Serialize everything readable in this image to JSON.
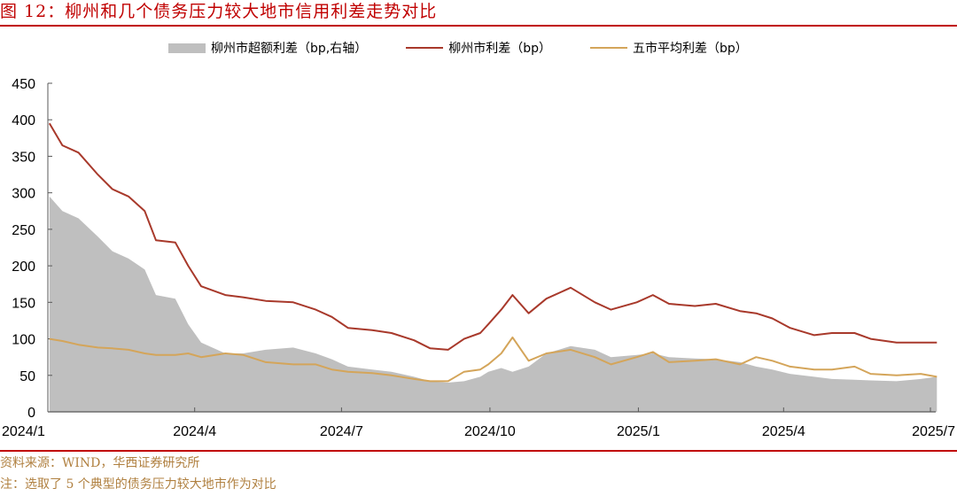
{
  "title": "图 12：柳州和几个债务压力较大地市信用利差走势对比",
  "legend": [
    {
      "label": "柳州市超额利差（bp,右轴）",
      "type": "area",
      "color": "#bfbfbf"
    },
    {
      "label": "柳州市利差（bp）",
      "type": "line",
      "color": "#a8392b"
    },
    {
      "label": "五市平均利差（bp）",
      "type": "line",
      "color": "#d4a55a"
    }
  ],
  "source": "资料来源：WIND，华西证券研究所",
  "note": "注：选取了 5 个典型的债务压力较大地市作为对比",
  "chart_data": {
    "type": "line",
    "title": "柳州和几个债务压力较大地市信用利差走势对比",
    "xlabel": "",
    "ylabel": "bp",
    "ylim": [
      0,
      450
    ],
    "yticks": [
      0,
      50,
      100,
      150,
      200,
      250,
      300,
      350,
      400,
      450
    ],
    "xticks": [
      "2024/1",
      "2024/4",
      "2024/7",
      "2024/10",
      "2025/1",
      "2025/4",
      "2025/7"
    ],
    "grid": false,
    "legend_position": "top",
    "x": [
      "2024-01-02",
      "2024-01-10",
      "2024-01-20",
      "2024-02-01",
      "2024-02-10",
      "2024-02-20",
      "2024-03-01",
      "2024-03-08",
      "2024-03-20",
      "2024-03-28",
      "2024-04-05",
      "2024-04-20",
      "2024-05-01",
      "2024-05-15",
      "2024-06-01",
      "2024-06-15",
      "2024-06-25",
      "2024-07-05",
      "2024-07-20",
      "2024-08-01",
      "2024-08-15",
      "2024-08-25",
      "2024-09-05",
      "2024-09-15",
      "2024-09-25",
      "2024-09-30",
      "2024-10-08",
      "2024-10-15",
      "2024-10-25",
      "2024-11-05",
      "2024-11-20",
      "2024-12-05",
      "2024-12-15",
      "2024-12-31",
      "2025-01-10",
      "2025-01-20",
      "2025-02-05",
      "2025-02-18",
      "2025-03-05",
      "2025-03-15",
      "2025-03-25",
      "2025-04-05",
      "2025-04-20",
      "2025-05-01",
      "2025-05-15",
      "2025-05-25",
      "2025-06-10",
      "2025-06-25",
      "2025-07-05"
    ],
    "series": [
      {
        "name": "柳州市超额利差（bp,右轴）",
        "type": "area",
        "color": "#bfbfbf",
        "values": [
          295,
          275,
          265,
          240,
          220,
          210,
          195,
          160,
          155,
          120,
          95,
          80,
          80,
          85,
          88,
          80,
          72,
          62,
          58,
          55,
          48,
          42,
          40,
          42,
          48,
          55,
          60,
          55,
          62,
          80,
          90,
          85,
          75,
          78,
          80,
          75,
          73,
          72,
          68,
          62,
          58,
          52,
          48,
          45,
          44,
          43,
          42,
          45,
          48
        ]
      },
      {
        "name": "柳州市利差（bp）",
        "type": "line",
        "color": "#a8392b",
        "values": [
          395,
          365,
          355,
          325,
          305,
          295,
          275,
          235,
          232,
          200,
          172,
          160,
          157,
          152,
          150,
          140,
          130,
          115,
          112,
          108,
          98,
          87,
          85,
          100,
          108,
          120,
          140,
          160,
          135,
          155,
          170,
          150,
          140,
          150,
          160,
          148,
          145,
          148,
          138,
          135,
          128,
          115,
          105,
          108,
          108,
          100,
          95,
          95,
          95
        ]
      },
      {
        "name": "五市平均利差（bp）",
        "type": "line",
        "color": "#d4a55a",
        "values": [
          100,
          97,
          92,
          88,
          87,
          85,
          80,
          78,
          78,
          80,
          75,
          80,
          78,
          68,
          65,
          65,
          58,
          55,
          53,
          50,
          45,
          42,
          42,
          55,
          58,
          65,
          80,
          102,
          70,
          80,
          85,
          75,
          65,
          75,
          82,
          68,
          70,
          72,
          65,
          75,
          70,
          62,
          58,
          58,
          62,
          52,
          50,
          52,
          48
        ]
      }
    ]
  }
}
